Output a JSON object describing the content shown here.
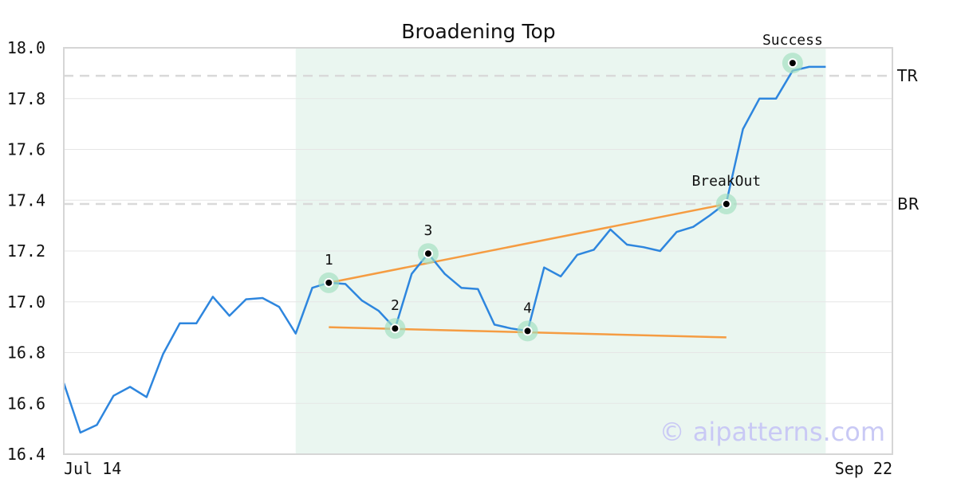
{
  "chart_data": {
    "type": "line",
    "title": "Broadening Top",
    "x_start_label": "Jul 14",
    "x_end_label": "Sep 22",
    "ylim": [
      16.4,
      18.0
    ],
    "yticks": [
      "16.4",
      "16.6",
      "16.8",
      "17.0",
      "17.2",
      "17.4",
      "17.6",
      "17.8",
      "18.0"
    ],
    "grid": true,
    "series": [
      {
        "values": [
          16.68,
          16.485,
          16.515,
          16.63,
          16.665,
          16.625,
          16.795,
          16.915,
          16.915,
          17.02,
          16.945,
          17.01,
          17.015,
          16.98,
          16.875,
          17.055,
          17.075,
          17.07,
          17.005,
          16.965,
          16.895,
          17.11,
          17.19,
          17.11,
          17.055,
          17.05,
          16.91,
          16.895,
          16.885,
          17.135,
          17.1,
          17.185,
          17.205,
          17.285,
          17.225,
          17.215,
          17.2,
          17.275,
          17.295,
          17.34,
          17.39,
          17.68,
          17.8,
          17.8,
          17.91,
          17.925,
          17.925
        ],
        "color": "#2e86de"
      }
    ],
    "highlight_range": [
      14,
      46
    ],
    "highlight_color": "#eaf6f0",
    "levels": [
      {
        "label": "TR",
        "value": 17.89
      },
      {
        "label": "BR",
        "value": 17.385
      }
    ],
    "trendlines": [
      {
        "from": [
          16,
          17.075
        ],
        "to": [
          40,
          17.385
        ],
        "color": "#f59c42"
      },
      {
        "from": [
          16,
          16.9
        ],
        "to": [
          40,
          16.86
        ],
        "color": "#f59c42"
      }
    ],
    "points": [
      {
        "label": "1",
        "x": 16,
        "y": 17.075
      },
      {
        "label": "2",
        "x": 20,
        "y": 16.895
      },
      {
        "label": "3",
        "x": 22,
        "y": 17.19
      },
      {
        "label": "4",
        "x": 28,
        "y": 16.885
      },
      {
        "label": "BreakOut",
        "x": 40,
        "y": 17.385
      },
      {
        "label": "Success",
        "x": 44,
        "y": 17.94
      }
    ]
  },
  "watermark": "© aipatterns.com"
}
